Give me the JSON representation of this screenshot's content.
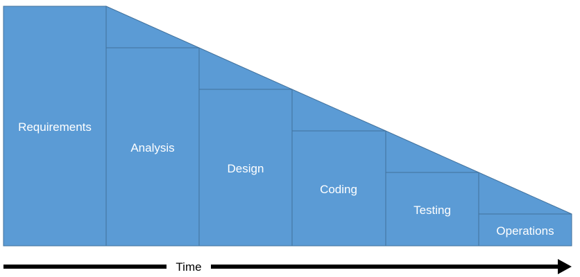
{
  "diagram": {
    "phases": [
      {
        "label": "Requirements"
      },
      {
        "label": "Analysis"
      },
      {
        "label": "Design"
      },
      {
        "label": "Coding"
      },
      {
        "label": "Testing"
      },
      {
        "label": "Operations"
      }
    ],
    "axis_label": "Time",
    "colors": {
      "fill": "#5b9bd5",
      "stroke": "#41719c",
      "label_text": "#ffffff",
      "arrow": "#000000"
    }
  }
}
